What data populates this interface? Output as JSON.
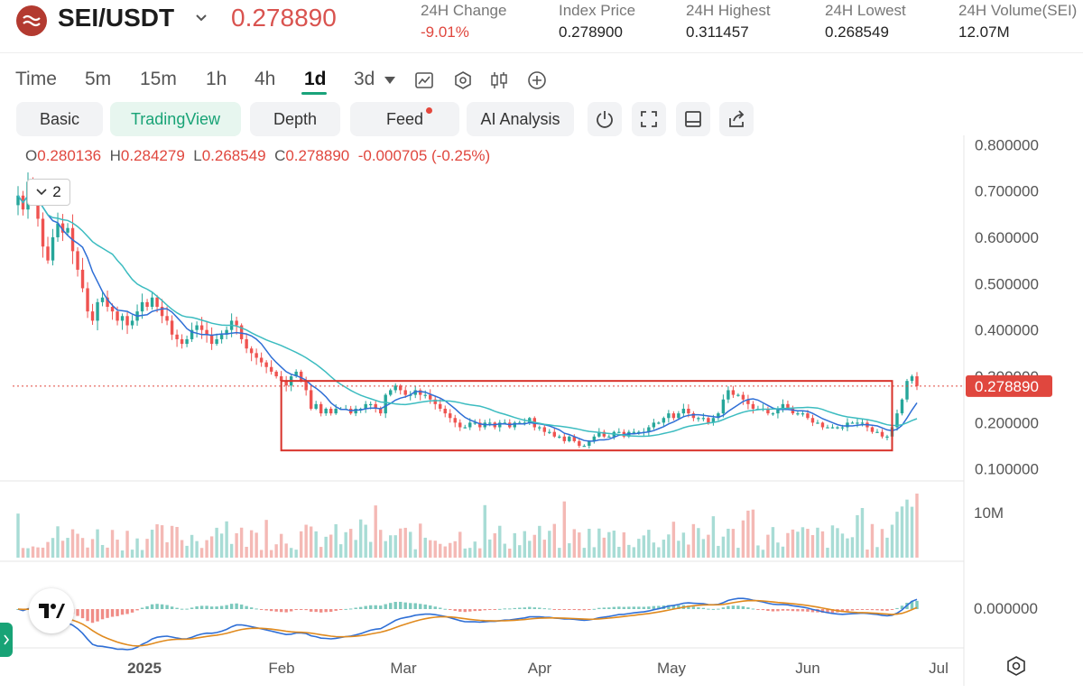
{
  "header": {
    "pair": "SEI/USDT",
    "last_price": "0.278890",
    "stats": [
      {
        "label": "24H Change",
        "value": "-9.01%",
        "negative": true
      },
      {
        "label": "Index Price",
        "value": "0.278900"
      },
      {
        "label": "24H Highest",
        "value": "0.311457"
      },
      {
        "label": "24H Lowest",
        "value": "0.268549"
      },
      {
        "label": "24H Volume(SEI)",
        "value": "12.07M"
      }
    ]
  },
  "timeframes": [
    "Time",
    "5m",
    "15m",
    "1h",
    "4h",
    "1d",
    "3d"
  ],
  "active_timeframe": "1d",
  "tabs": [
    "Basic",
    "TradingView",
    "Depth",
    "Feed",
    "AI Analysis"
  ],
  "active_tab": "TradingView",
  "ohlc": {
    "o_label": "O",
    "o": "0.280136",
    "h_label": "H",
    "h": "0.284279",
    "l_label": "L",
    "l": "0.268549",
    "c_label": "C",
    "c": "0.278890",
    "change": "-0.000705 (-0.25%)"
  },
  "legend_toggle": "2",
  "colors": {
    "up": "#26a69a",
    "down": "#ef5350",
    "ma_fast": "#2f6fd6",
    "ma_slow": "#3cbcc0",
    "signal": "#e08a1e",
    "box": "#d8322a",
    "price_tag": "#e0473e"
  },
  "chart_data": {
    "type": "candlestick",
    "price_axis_ticks": [
      "0.800000",
      "0.700000",
      "0.600000",
      "0.500000",
      "0.400000",
      "0.300000",
      "0.200000",
      "0.100000"
    ],
    "ylim": [
      0.08,
      0.82
    ],
    "last_price_label": "0.278890",
    "volume_axis_label": "10M",
    "macd_axis_label": "0.000000",
    "time_axis_labels": [
      "2025",
      "Feb",
      "Mar",
      "Apr",
      "May",
      "Jun",
      "Jul"
    ],
    "range_box": {
      "from": "Feb",
      "to": "late Jun",
      "high": 0.29,
      "low": 0.14
    },
    "closes": [
      0.69,
      0.66,
      0.72,
      0.7,
      0.64,
      0.58,
      0.55,
      0.6,
      0.63,
      0.61,
      0.62,
      0.57,
      0.53,
      0.49,
      0.44,
      0.42,
      0.46,
      0.47,
      0.45,
      0.44,
      0.42,
      0.43,
      0.41,
      0.42,
      0.44,
      0.46,
      0.45,
      0.47,
      0.45,
      0.43,
      0.42,
      0.39,
      0.38,
      0.37,
      0.38,
      0.4,
      0.41,
      0.4,
      0.39,
      0.37,
      0.38,
      0.39,
      0.4,
      0.42,
      0.41,
      0.38,
      0.36,
      0.35,
      0.34,
      0.33,
      0.32,
      0.31,
      0.3,
      0.29,
      0.28,
      0.3,
      0.31,
      0.29,
      0.27,
      0.23,
      0.24,
      0.22,
      0.23,
      0.22,
      0.23,
      0.23,
      0.23,
      0.22,
      0.23,
      0.23,
      0.24,
      0.24,
      0.23,
      0.22,
      0.26,
      0.27,
      0.28,
      0.27,
      0.26,
      0.26,
      0.27,
      0.26,
      0.26,
      0.25,
      0.24,
      0.23,
      0.22,
      0.21,
      0.2,
      0.19,
      0.19,
      0.2,
      0.2,
      0.19,
      0.2,
      0.2,
      0.19,
      0.2,
      0.2,
      0.19,
      0.2,
      0.2,
      0.2,
      0.21,
      0.19,
      0.19,
      0.18,
      0.18,
      0.17,
      0.17,
      0.16,
      0.17,
      0.16,
      0.15,
      0.15,
      0.16,
      0.17,
      0.18,
      0.17,
      0.17,
      0.18,
      0.18,
      0.17,
      0.18,
      0.18,
      0.18,
      0.18,
      0.19,
      0.2,
      0.2,
      0.21,
      0.22,
      0.21,
      0.22,
      0.23,
      0.22,
      0.21,
      0.21,
      0.21,
      0.2,
      0.21,
      0.22,
      0.25,
      0.27,
      0.26,
      0.26,
      0.25,
      0.24,
      0.23,
      0.23,
      0.23,
      0.22,
      0.22,
      0.23,
      0.24,
      0.23,
      0.22,
      0.22,
      0.22,
      0.21,
      0.2,
      0.2,
      0.19,
      0.19,
      0.19,
      0.19,
      0.19,
      0.2,
      0.2,
      0.2,
      0.2,
      0.19,
      0.18,
      0.18,
      0.17,
      0.17,
      0.19,
      0.22,
      0.25,
      0.29,
      0.3,
      0.279
    ]
  }
}
